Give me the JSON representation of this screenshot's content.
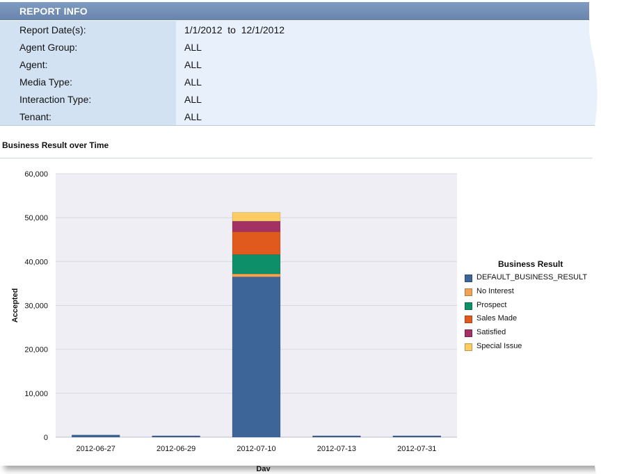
{
  "report_info": {
    "header": "REPORT INFO",
    "rows": [
      {
        "label": "Report Date(s):",
        "value": "1/1/2012  to  12/1/2012"
      },
      {
        "label": "Agent Group:",
        "value": "ALL"
      },
      {
        "label": "Agent:",
        "value": "ALL"
      },
      {
        "label": "Media Type:",
        "value": "ALL"
      },
      {
        "label": "Interaction Type:",
        "value": "ALL"
      },
      {
        "label": "Tenant:",
        "value": "ALL"
      }
    ]
  },
  "chart_section_title": "Business Result over Time",
  "chart_data": {
    "type": "bar",
    "stacked": true,
    "title": "",
    "xlabel": "Day",
    "ylabel": "Accepted",
    "ylim": [
      0,
      60000
    ],
    "yticks": [
      0,
      10000,
      20000,
      30000,
      40000,
      50000,
      60000
    ],
    "ytick_labels": [
      "0",
      "10,000",
      "20,000",
      "30,000",
      "40,000",
      "50,000",
      "60,000"
    ],
    "categories": [
      "2012-06-27",
      "2012-06-29",
      "2012-07-10",
      "2012-07-13",
      "2012-07-31"
    ],
    "legend_title": "Business Result",
    "legend_position": "right",
    "series": [
      {
        "name": "DEFAULT_BUSINESS_RESULT",
        "color": "#3d6598",
        "values": [
          500,
          150,
          36500,
          150,
          200
        ]
      },
      {
        "name": "No Interest",
        "color": "#f0a355",
        "values": [
          0,
          0,
          700,
          0,
          0
        ]
      },
      {
        "name": "Prospect",
        "color": "#0d8f6a",
        "values": [
          0,
          0,
          4400,
          0,
          0
        ]
      },
      {
        "name": "Sales Made",
        "color": "#e05a1e",
        "values": [
          0,
          0,
          5200,
          0,
          0
        ]
      },
      {
        "name": "Satisfied",
        "color": "#a33163",
        "values": [
          0,
          0,
          2400,
          0,
          0
        ]
      },
      {
        "name": "Special Issue",
        "color": "#fbcb64",
        "values": [
          0,
          0,
          2000,
          0,
          0
        ]
      }
    ]
  }
}
